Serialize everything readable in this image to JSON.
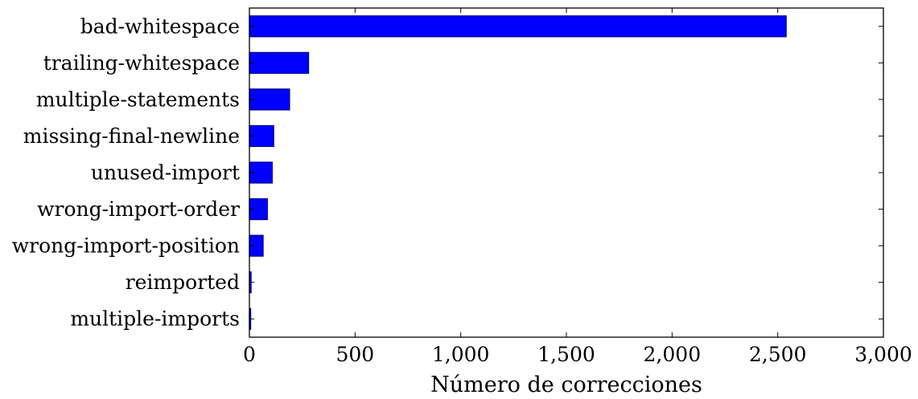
{
  "chart_data": {
    "type": "bar",
    "orientation": "horizontal",
    "categories": [
      "bad-whitespace",
      "trailing-whitespace",
      "multiple-statements",
      "missing-final-newline",
      "unused-import",
      "wrong-import-order",
      "wrong-import-position",
      "reimported",
      "multiple-imports"
    ],
    "values": [
      2540,
      280,
      190,
      115,
      108,
      85,
      65,
      8,
      6
    ],
    "xlabel": "Número de correcciones",
    "ylabel": "",
    "xlim": [
      0,
      3000
    ],
    "xticks": [
      "0",
      "500",
      "1,000",
      "1,500",
      "2,000",
      "2,500",
      "3,000"
    ],
    "xtick_values": [
      0,
      500,
      1000,
      1500,
      2000,
      2500,
      3000
    ],
    "bar_color": "#0000ff",
    "bar_edge_color": "#00008b",
    "grid": false,
    "legend": "none"
  }
}
